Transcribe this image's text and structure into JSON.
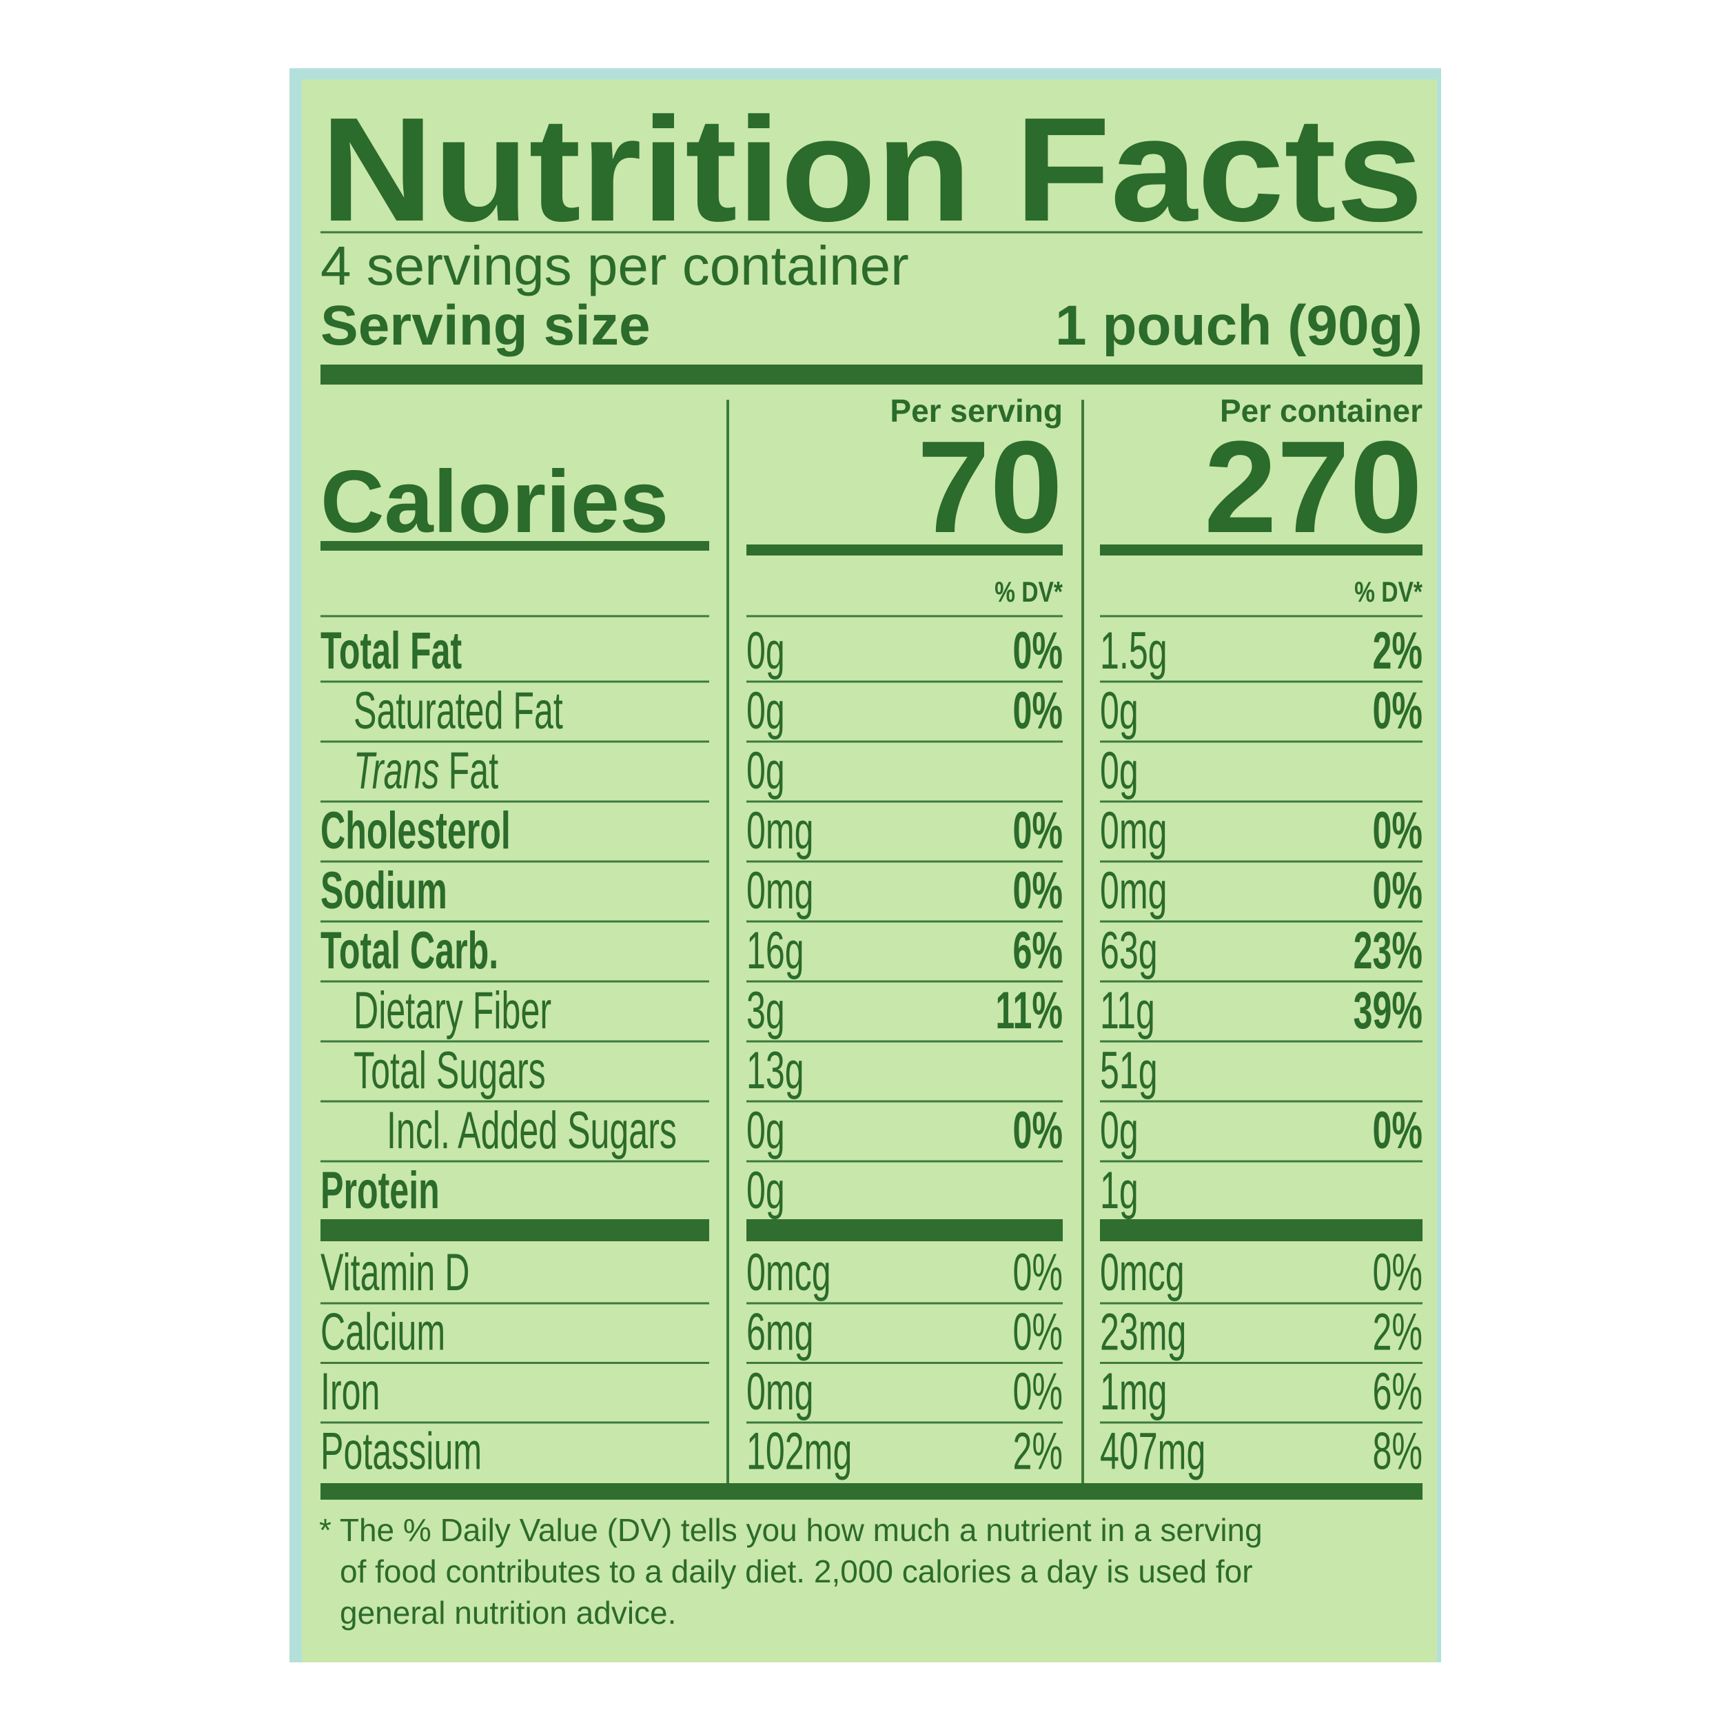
{
  "header": {
    "title": "Nutrition Facts",
    "servings": "4 servings per container",
    "serving_size_label": "Serving size",
    "serving_size": "1 pouch (90g)"
  },
  "columns": {
    "per_serving": "Per serving",
    "per_container": "Per container",
    "dv": "% DV*"
  },
  "calories": {
    "label": "Calories",
    "per_serving": 70,
    "per_container": 270
  },
  "nutrients": [
    {
      "name": "Total Fat",
      "serving": "0g",
      "serving_dv": "0%",
      "container": "1.5g",
      "container_dv": "2%"
    },
    {
      "name": "Saturated Fat",
      "serving": "0g",
      "serving_dv": "0%",
      "container": "0g",
      "container_dv": "0%"
    },
    {
      "name_italic": "Trans",
      "name": "Fat",
      "serving": "0g",
      "container": "0g"
    },
    {
      "name": "Cholesterol",
      "serving": "0mg",
      "serving_dv": "0%",
      "container": "0mg",
      "container_dv": "0%"
    },
    {
      "name": "Sodium",
      "serving": "0mg",
      "serving_dv": "0%",
      "container": "0mg",
      "container_dv": "0%"
    },
    {
      "name": "Total Carb.",
      "serving": "16g",
      "serving_dv": "6%",
      "container": "63g",
      "container_dv": "23%"
    },
    {
      "name": "Dietary Fiber",
      "serving": "3g",
      "serving_dv": "11%",
      "container": "11g",
      "container_dv": "39%"
    },
    {
      "name": "Total Sugars",
      "serving": "13g",
      "container": "51g"
    },
    {
      "name": "Incl. Added Sugars",
      "serving": "0g",
      "serving_dv": "0%",
      "container": "0g",
      "container_dv": "0%"
    },
    {
      "name": "Protein",
      "serving": "0g",
      "container": "1g"
    }
  ],
  "vitamins": [
    {
      "name": "Vitamin D",
      "serving": "0mcg",
      "serving_dv": "0%",
      "container": "0mcg",
      "container_dv": "0%"
    },
    {
      "name": "Calcium",
      "serving": "6mg",
      "serving_dv": "0%",
      "container": "23mg",
      "container_dv": "2%"
    },
    {
      "name": "Iron",
      "serving": "0mg",
      "serving_dv": "0%",
      "container": "1mg",
      "container_dv": "6%"
    },
    {
      "name": "Potassium",
      "serving": "102mg",
      "serving_dv": "2%",
      "container": "407mg",
      "container_dv": "8%"
    }
  ],
  "footnote": [
    "* The % Daily Value (DV) tells you how much a nutrient in a serving",
    "of food contributes to a daily diet. 2,000 calories a day is used for",
    "general nutrition advice."
  ]
}
